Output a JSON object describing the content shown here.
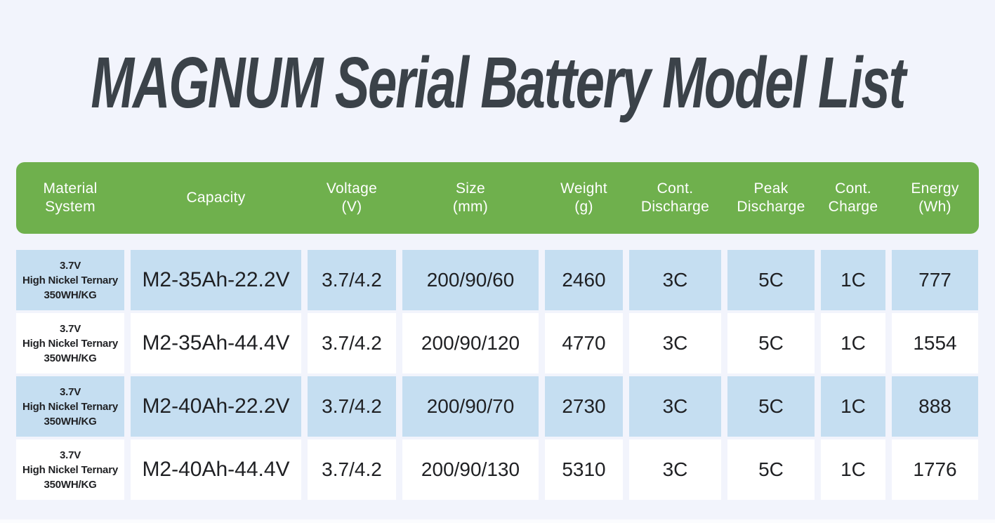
{
  "page": {
    "title": "MAGNUM Serial Battery Model List"
  },
  "colors": {
    "background": "#f2f4fc",
    "header_green": "#6fb04d",
    "header_text": "#ffffff",
    "shaded_cell_blue": "#c5def1",
    "plain_cell_white": "#ffffff",
    "cell_text": "#1f2023",
    "title_text": "#3b4249"
  },
  "table": {
    "columns": [
      "Material\nSystem",
      "Capacity",
      "Voltage\n(V)",
      "Size\n(mm)",
      "Weight\n(g)",
      "Cont.\nDischarge",
      "Peak\nDischarge",
      "Cont.\nCharge",
      "Energy\n(Wh)"
    ],
    "rows": [
      {
        "shaded": true,
        "cells": [
          "3.7V\nHigh Nickel Ternary\n350WH/KG",
          "M2-35Ah-22.2V",
          "3.7/4.2",
          "200/90/60",
          "2460",
          "3C",
          "5C",
          "1C",
          "777"
        ]
      },
      {
        "shaded": false,
        "cells": [
          "3.7V\nHigh Nickel Ternary\n350WH/KG",
          "M2-35Ah-44.4V",
          "3.7/4.2",
          "200/90/120",
          "4770",
          "3C",
          "5C",
          "1C",
          "1554"
        ]
      },
      {
        "shaded": true,
        "cells": [
          "3.7V\nHigh Nickel Ternary\n350WH/KG",
          "M2-40Ah-22.2V",
          "3.7/4.2",
          "200/90/70",
          "2730",
          "3C",
          "5C",
          "1C",
          "888"
        ]
      },
      {
        "shaded": false,
        "cells": [
          "3.7V\nHigh Nickel Ternary\n350WH/KG",
          "M2-40Ah-44.4V",
          "3.7/4.2",
          "200/90/130",
          "5310",
          "3C",
          "5C",
          "1C",
          "1776"
        ]
      }
    ]
  }
}
